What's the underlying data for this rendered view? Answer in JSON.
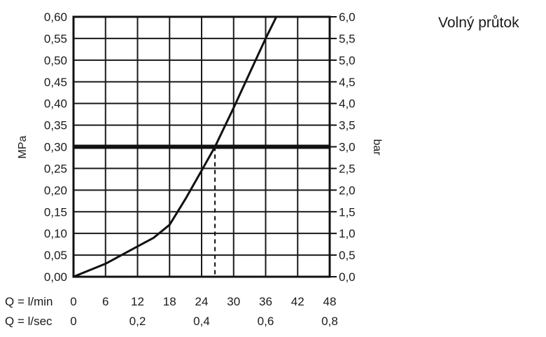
{
  "caption": "Volný průtok",
  "chart_data": {
    "type": "line",
    "ylabel_left": "MPa",
    "ylabel_right": "bar",
    "ylim": [
      0,
      0.6
    ],
    "xlim": [
      0,
      48
    ],
    "y_ticks_left": [
      "0,00",
      "0,05",
      "0,10",
      "0,15",
      "0,20",
      "0,25",
      "0,30",
      "0,35",
      "0,40",
      "0,45",
      "0,50",
      "0,55",
      "0,60"
    ],
    "y_ticks_right": [
      "0,0",
      "0,5",
      "1,0",
      "1,5",
      "2,0",
      "2,5",
      "3,0",
      "3,5",
      "4,0",
      "4,5",
      "5,0",
      "5,5",
      "6,0"
    ],
    "x_row1_label": "Q = l/min",
    "x_row1_ticks": [
      "0",
      "6",
      "12",
      "18",
      "24",
      "30",
      "36",
      "42",
      "48"
    ],
    "x_row2_label": "Q = l/sec",
    "x_row2_ticks": [
      {
        "value": 0,
        "label": "0"
      },
      {
        "value": 12,
        "label": "0,2"
      },
      {
        "value": 24,
        "label": "0,4"
      },
      {
        "value": 36,
        "label": "0,6"
      },
      {
        "value": 48,
        "label": "0,8"
      }
    ],
    "grid": true,
    "series": [
      {
        "x": [
          0,
          6,
          12,
          15,
          18,
          21,
          24,
          26.5,
          30,
          33,
          36,
          38
        ],
        "y": [
          0,
          0.03,
          0.07,
          0.09,
          0.12,
          0.18,
          0.245,
          0.3,
          0.39,
          0.47,
          0.55,
          0.6
        ]
      }
    ],
    "reference_line": {
      "y": 0.3
    },
    "reference_drop": {
      "x": 26.5,
      "y": 0.3
    }
  }
}
